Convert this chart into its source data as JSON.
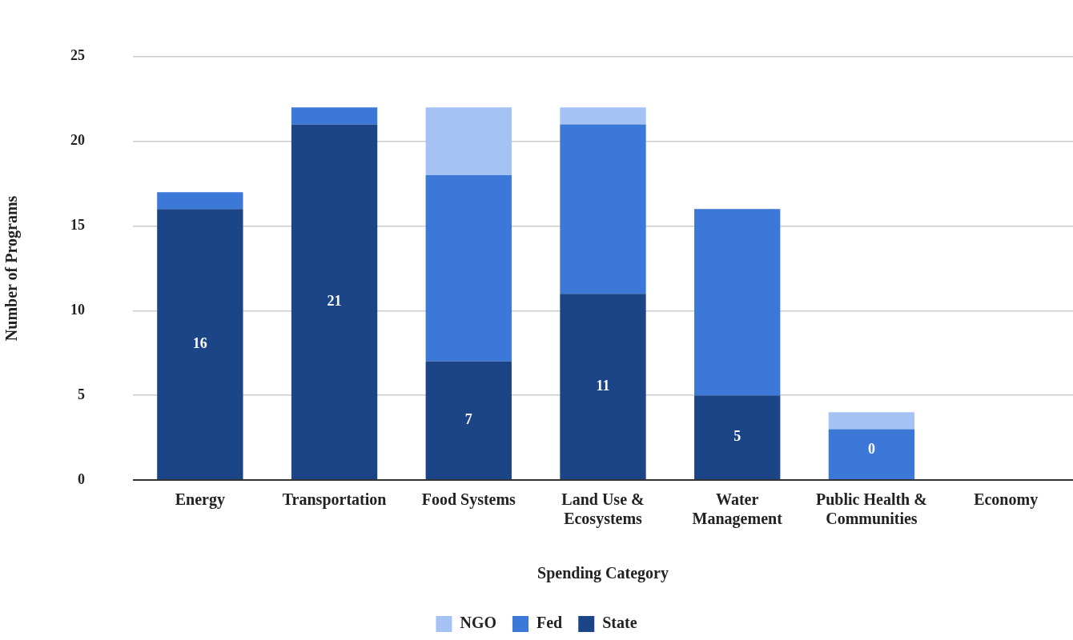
{
  "chart_data": {
    "type": "bar",
    "stacked": true,
    "categories": [
      "Energy",
      "Transportation",
      "Food Systems",
      "Land Use & Ecosystems",
      "Water Management",
      "Public Health & Communities",
      "Economy"
    ],
    "series": [
      {
        "name": "State",
        "color": "#1c4587",
        "values": [
          16,
          21,
          7,
          11,
          5,
          0,
          0
        ],
        "value_labels": [
          "16",
          "21",
          "7",
          "11",
          "5",
          "0",
          null
        ]
      },
      {
        "name": "Fed",
        "color": "#3c78d8",
        "values": [
          1,
          1,
          11,
          10,
          11,
          3,
          0
        ]
      },
      {
        "name": "NGO",
        "color": "#a4c2f4",
        "values": [
          0,
          0,
          4,
          1,
          0,
          1,
          0
        ]
      }
    ],
    "xlabel": "Spending Category",
    "ylabel": "Number of Programs",
    "ylim": [
      0,
      25
    ],
    "yticks": [
      0,
      5,
      10,
      15,
      20,
      25
    ],
    "grid": "y",
    "legend": "bottom"
  }
}
